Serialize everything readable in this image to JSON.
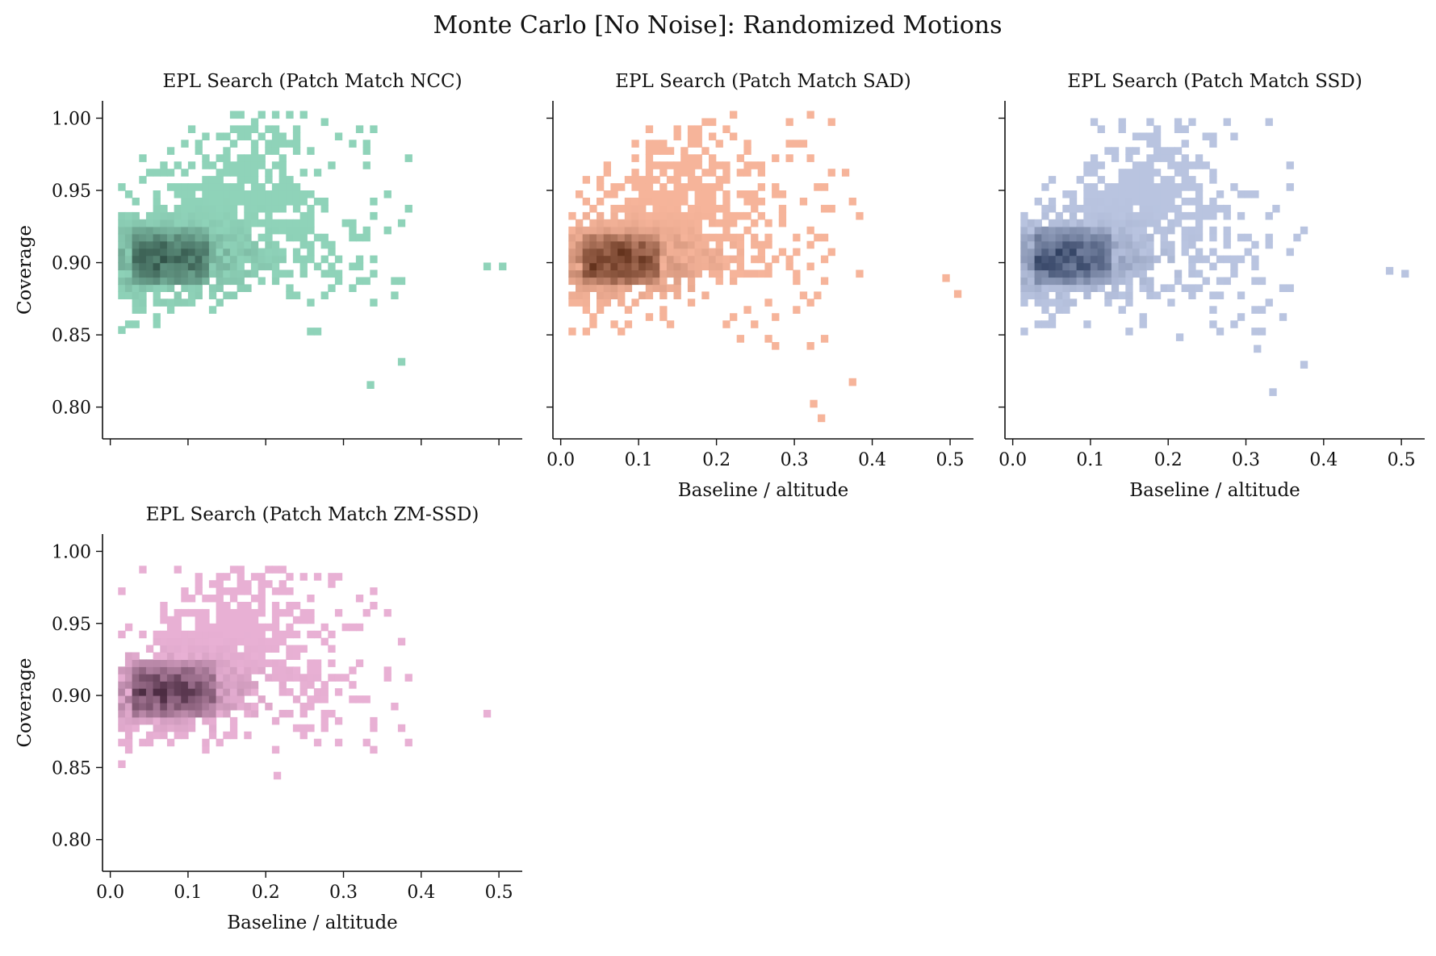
{
  "figure": {
    "suptitle": "Monte Carlo [No Noise]: Randomized Motions"
  },
  "chart_data": [
    {
      "type": "heatmap",
      "title": "EPL Search (Patch Match NCC)",
      "xlabel": "",
      "ylabel": "Coverage",
      "xlim": [
        -0.01,
        0.53
      ],
      "ylim": [
        0.778,
        1.012
      ],
      "x_ticks": [
        0.0,
        0.1,
        0.2,
        0.3,
        0.4,
        0.5
      ],
      "x_tick_labels": [
        "",
        "",
        "",
        "",
        "",
        ""
      ],
      "y_ticks": [
        0.8,
        0.85,
        0.9,
        0.95,
        1.0
      ],
      "y_tick_labels": [
        "0.80",
        "0.85",
        "0.90",
        "0.95",
        "1.00"
      ],
      "grid": false,
      "color_light": "#8fd3b9",
      "color_dark": "#2f4f45",
      "density": {
        "dense_core": {
          "x_range": [
            0.02,
            0.12
          ],
          "y_center": 0.901,
          "peak_x": 0.06
        },
        "spread": {
          "x_range": [
            0.01,
            0.38
          ],
          "y_range": [
            0.85,
            1.0
          ]
        },
        "outliers": [
          [
            0.01,
            0.851
          ],
          [
            0.33,
            0.813
          ],
          [
            0.37,
            0.829
          ],
          [
            0.48,
            0.895
          ],
          [
            0.5,
            0.895
          ]
        ]
      }
    },
    {
      "type": "heatmap",
      "title": "EPL Search (Patch Match SAD)",
      "xlabel": "Baseline / altitude",
      "ylabel": "",
      "xlim": [
        -0.01,
        0.53
      ],
      "ylim": [
        0.778,
        1.012
      ],
      "x_ticks": [
        0.0,
        0.1,
        0.2,
        0.3,
        0.4,
        0.5
      ],
      "x_tick_labels": [
        "0.0",
        "0.1",
        "0.2",
        "0.3",
        "0.4",
        "0.5"
      ],
      "y_ticks": [
        0.8,
        0.85,
        0.9,
        0.95,
        1.0
      ],
      "y_tick_labels": [
        "",
        "",
        "",
        "",
        ""
      ],
      "grid": false,
      "color_light": "#f6b49a",
      "color_dark": "#5a2a14",
      "density": {
        "dense_core": {
          "x_range": [
            0.02,
            0.12
          ],
          "y_center": 0.9,
          "peak_x": 0.06
        },
        "spread": {
          "x_range": [
            0.01,
            0.38
          ],
          "y_range": [
            0.84,
            1.0
          ]
        },
        "outliers": [
          [
            0.01,
            0.85
          ],
          [
            0.32,
            0.8
          ],
          [
            0.33,
            0.79
          ],
          [
            0.37,
            0.815
          ],
          [
            0.49,
            0.887
          ],
          [
            0.505,
            0.876
          ]
        ]
      }
    },
    {
      "type": "heatmap",
      "title": "EPL Search (Patch Match SSD)",
      "xlabel": "Baseline / altitude",
      "ylabel": "",
      "xlim": [
        -0.01,
        0.53
      ],
      "ylim": [
        0.778,
        1.012
      ],
      "x_ticks": [
        0.0,
        0.1,
        0.2,
        0.3,
        0.4,
        0.5
      ],
      "x_tick_labels": [
        "0.0",
        "0.1",
        "0.2",
        "0.3",
        "0.4",
        "0.5"
      ],
      "y_ticks": [
        0.8,
        0.85,
        0.9,
        0.95,
        1.0
      ],
      "y_tick_labels": [
        "",
        "",
        "",
        "",
        ""
      ],
      "grid": false,
      "color_light": "#b9c4e0",
      "color_dark": "#2f3f60",
      "density": {
        "dense_core": {
          "x_range": [
            0.02,
            0.12
          ],
          "y_center": 0.901,
          "peak_x": 0.06
        },
        "spread": {
          "x_range": [
            0.01,
            0.38
          ],
          "y_range": [
            0.85,
            1.0
          ]
        },
        "outliers": [
          [
            0.01,
            0.85
          ],
          [
            0.21,
            0.846
          ],
          [
            0.31,
            0.838
          ],
          [
            0.33,
            0.808
          ],
          [
            0.37,
            0.827
          ],
          [
            0.48,
            0.892
          ],
          [
            0.5,
            0.89
          ]
        ]
      }
    },
    {
      "type": "heatmap",
      "title": "EPL Search (Patch Match ZM-SSD)",
      "xlabel": "Baseline / altitude",
      "ylabel": "Coverage",
      "xlim": [
        -0.01,
        0.53
      ],
      "ylim": [
        0.778,
        1.012
      ],
      "x_ticks": [
        0.0,
        0.1,
        0.2,
        0.3,
        0.4,
        0.5
      ],
      "x_tick_labels": [
        "0.0",
        "0.1",
        "0.2",
        "0.3",
        "0.4",
        "0.5"
      ],
      "y_ticks": [
        0.8,
        0.85,
        0.9,
        0.95,
        1.0
      ],
      "y_tick_labels": [
        "0.80",
        "0.85",
        "0.90",
        "0.95",
        "1.00"
      ],
      "grid": false,
      "color_light": "#e8b0d4",
      "color_dark": "#4a2a40",
      "density": {
        "dense_core": {
          "x_range": [
            0.02,
            0.13
          ],
          "y_center": 0.901,
          "peak_x": 0.06
        },
        "spread": {
          "x_range": [
            0.01,
            0.38
          ],
          "y_range": [
            0.86,
            0.99
          ]
        },
        "outliers": [
          [
            0.01,
            0.85
          ],
          [
            0.21,
            0.842
          ],
          [
            0.48,
            0.885
          ]
        ]
      }
    }
  ]
}
